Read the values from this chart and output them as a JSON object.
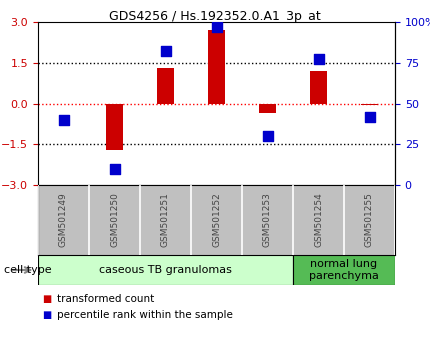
{
  "title": "GDS4256 / Hs.192352.0.A1_3p_at",
  "samples": [
    "GSM501249",
    "GSM501250",
    "GSM501251",
    "GSM501252",
    "GSM501253",
    "GSM501254",
    "GSM501255"
  ],
  "transformed_count": [
    0.0,
    -1.7,
    1.3,
    2.7,
    -0.35,
    1.2,
    -0.05
  ],
  "percentile_rank": [
    40,
    10,
    82,
    97,
    30,
    77,
    42
  ],
  "ylim_left": [
    -3,
    3
  ],
  "ylim_right": [
    0,
    100
  ],
  "yticks_left": [
    -3,
    -1.5,
    0,
    1.5,
    3
  ],
  "yticks_right": [
    0,
    25,
    50,
    75,
    100
  ],
  "bar_color": "#cc0000",
  "dot_color": "#0000cc",
  "bar_width": 0.35,
  "dot_size": 45,
  "cell_type_label": "cell type",
  "groups": [
    {
      "label": "caseous TB granulomas",
      "start": 0,
      "end": 4,
      "color": "#ccffcc"
    },
    {
      "label": "normal lung\nparenchyma",
      "start": 5,
      "end": 6,
      "color": "#55bb55"
    }
  ],
  "legend_items": [
    {
      "color": "#cc0000",
      "label": "transformed count"
    },
    {
      "color": "#0000cc",
      "label": "percentile rank within the sample"
    }
  ],
  "tick_color_left": "#cc0000",
  "tick_color_right": "#0000cc",
  "bg_color": "#ffffff",
  "sample_box_color": "#c0c0c0",
  "sample_text_color": "#444444",
  "title_fontsize": 9,
  "tick_fontsize": 8,
  "sample_fontsize": 6.5,
  "legend_fontsize": 7.5,
  "celltype_fontsize": 8
}
